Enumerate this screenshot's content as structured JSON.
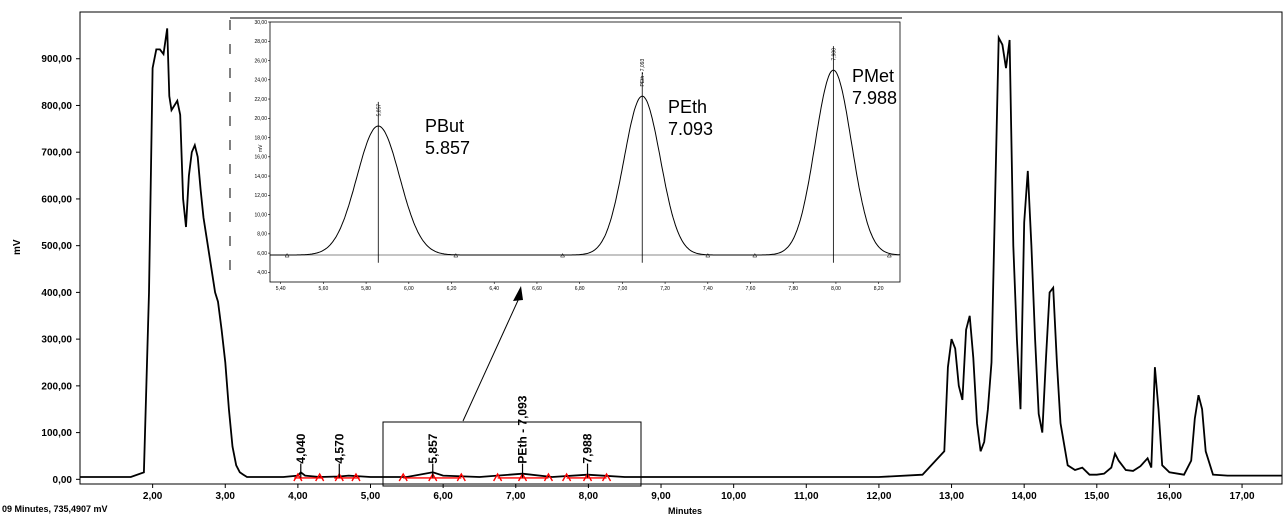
{
  "chart_data": [
    {
      "type": "line",
      "xlabel": "Minutes",
      "ylabel": "mV",
      "xlim": [
        1.0,
        17.55
      ],
      "ylim": [
        -10,
        1000
      ],
      "x_ticks": [
        "2,00",
        "3,00",
        "4,00",
        "5,00",
        "6,00",
        "7,00",
        "8,00",
        "9,00",
        "10,00",
        "11,00",
        "12,00",
        "13,00",
        "14,00",
        "15,00",
        "16,00",
        "17,00"
      ],
      "y_ticks": [
        "0,00",
        "100,00",
        "200,00",
        "300,00",
        "400,00",
        "500,00",
        "600,00",
        "700,00",
        "800,00",
        "900,00"
      ],
      "status_text": "09 Minutes, 735,4907 mV",
      "series": [
        {
          "x": [
            1.0,
            1.7,
            1.88,
            1.95,
            2.0,
            2.05,
            2.1,
            2.15,
            2.2,
            2.23,
            2.26,
            2.3,
            2.34,
            2.38,
            2.42,
            2.46,
            2.5,
            2.54,
            2.58,
            2.62,
            2.66,
            2.7,
            2.74,
            2.78,
            2.82,
            2.86,
            2.9,
            2.95,
            3.0,
            3.05,
            3.1,
            3.15,
            3.2,
            3.25,
            3.3,
            3.4,
            3.6,
            3.8,
            4.0,
            4.04,
            4.1,
            4.3,
            4.57,
            4.7,
            5.0,
            5.5,
            5.857,
            6.0,
            6.5,
            7.093,
            7.5,
            7.988,
            8.5,
            9.0,
            10.0,
            11.0,
            12.0,
            12.6,
            12.9,
            12.95,
            13.0,
            13.05,
            13.1,
            13.15,
            13.2,
            13.25,
            13.3,
            13.35,
            13.4,
            13.45,
            13.5,
            13.55,
            13.6,
            13.65,
            13.7,
            13.75,
            13.8,
            13.85,
            13.9,
            13.95,
            14.0,
            14.05,
            14.1,
            14.15,
            14.2,
            14.25,
            14.3,
            14.35,
            14.4,
            14.45,
            14.5,
            14.6,
            14.7,
            14.8,
            14.9,
            15.0,
            15.1,
            15.2,
            15.25,
            15.3,
            15.4,
            15.5,
            15.6,
            15.7,
            15.75,
            15.8,
            15.85,
            15.9,
            16.0,
            16.2,
            16.3,
            16.35,
            16.4,
            16.45,
            16.5,
            16.6,
            16.8,
            17.0,
            17.55
          ],
          "y": [
            5,
            5,
            15,
            400,
            880,
            920,
            920,
            910,
            965,
            820,
            790,
            800,
            810,
            780,
            600,
            540,
            650,
            700,
            715,
            690,
            620,
            560,
            520,
            480,
            440,
            400,
            380,
            320,
            250,
            150,
            70,
            30,
            15,
            10,
            5,
            5,
            5,
            5,
            8,
            15,
            8,
            5,
            6,
            8,
            5,
            5,
            15,
            8,
            5,
            12,
            5,
            10,
            5,
            5,
            5,
            5,
            5,
            10,
            60,
            240,
            300,
            280,
            200,
            170,
            320,
            350,
            260,
            120,
            60,
            80,
            150,
            250,
            600,
            945,
            930,
            880,
            940,
            500,
            300,
            150,
            550,
            660,
            500,
            300,
            140,
            100,
            260,
            400,
            410,
            250,
            120,
            30,
            20,
            25,
            10,
            10,
            12,
            25,
            55,
            40,
            20,
            18,
            28,
            45,
            25,
            240,
            150,
            30,
            15,
            10,
            40,
            130,
            180,
            150,
            60,
            10,
            8,
            8,
            8
          ]
        }
      ],
      "annotations": [
        "4,040",
        "4,570",
        "5,857",
        "PEth - 7,093",
        "7,988"
      ]
    },
    {
      "type": "line",
      "title": "",
      "xlabel": "",
      "ylabel": "mV",
      "xlim": [
        5.35,
        8.3
      ],
      "ylim": [
        3.0,
        30.0
      ],
      "x_ticks": [
        "5,40",
        "5,60",
        "5,80",
        "6,00",
        "6,20",
        "6,40",
        "6,60",
        "6,80",
        "7,00",
        "7,20",
        "7,40",
        "7,60",
        "7,80",
        "8,00",
        "8,20"
      ],
      "y_ticks": [
        "4,00",
        "6,00",
        "8,00",
        "10,00",
        "12,00",
        "14,00",
        "16,00",
        "18,00",
        "20,00",
        "22,00",
        "24,00",
        "26,00",
        "28,00",
        "30,00"
      ],
      "peaks": [
        {
          "name": "PBut",
          "rt": "5.857",
          "x": 5.857,
          "height": 19.2,
          "sigma": 0.1,
          "tick_label": "5,857"
        },
        {
          "name": "PEth",
          "rt": "7.093",
          "x": 7.093,
          "height": 22.3,
          "sigma": 0.085,
          "tick_label": "PEth - 7,093"
        },
        {
          "name": "PMet",
          "rt": "7.988",
          "x": 7.988,
          "height": 25.0,
          "sigma": 0.085,
          "tick_label": "7,988"
        }
      ],
      "baseline": 5.8
    }
  ],
  "colors": {
    "line": "#000000",
    "integration": "#ff0000"
  }
}
